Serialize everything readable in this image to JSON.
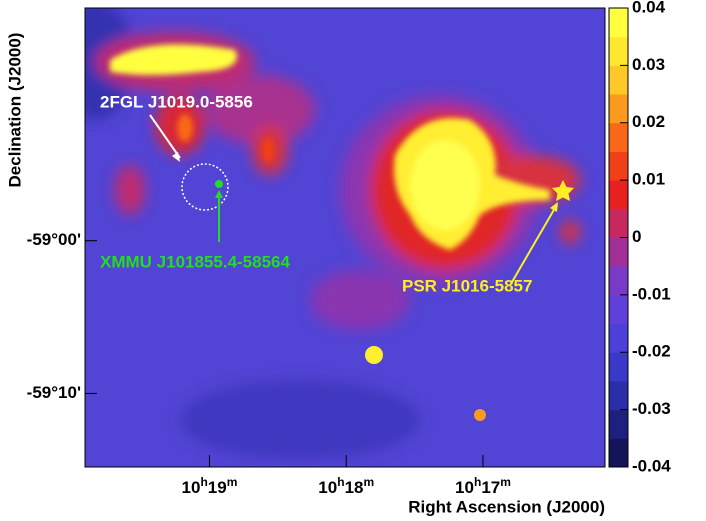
{
  "chart_data": {
    "type": "skymap",
    "xlabel": "Right Ascension (J2000)",
    "ylabel": "Declination (J2000)",
    "xlim": [
      10.3319,
      10.2684
    ],
    "xticks": [
      {
        "value": 10.3167,
        "label": "10h19m"
      },
      {
        "value": 10.3,
        "label": "10h18m"
      },
      {
        "value": 10.2833,
        "label": "10h17m"
      }
    ],
    "ylim": [
      -59.247,
      -58.746
    ],
    "yticks": [
      {
        "value": -59.0,
        "label": "-59°00'"
      },
      {
        "value": -59.1667,
        "label": "-59°10'"
      }
    ],
    "colorbar": {
      "lim": [
        -0.04,
        0.04
      ],
      "ticks": [
        0.04,
        0.03,
        0.02,
        0.01,
        0,
        -0.01,
        -0.02,
        -0.03,
        -0.04
      ],
      "colors": [
        "#14145a",
        "#1e2080",
        "#2a2ea8",
        "#3a38c8",
        "#4c40d8",
        "#6040d8",
        "#7a3ac8",
        "#a03098",
        "#c82860",
        "#e82020",
        "#f04018",
        "#f86818",
        "#fc9a20",
        "#fdc828",
        "#ffe830",
        "#ffff40"
      ]
    },
    "annotations": [
      {
        "text": "2FGL J1019.0-5856",
        "color": "#ffffff"
      },
      {
        "text": "XMMU J101855.4-58564",
        "color": "#22dd22"
      },
      {
        "text": "PSR J1016-5857",
        "color": "#ffee22"
      }
    ]
  }
}
